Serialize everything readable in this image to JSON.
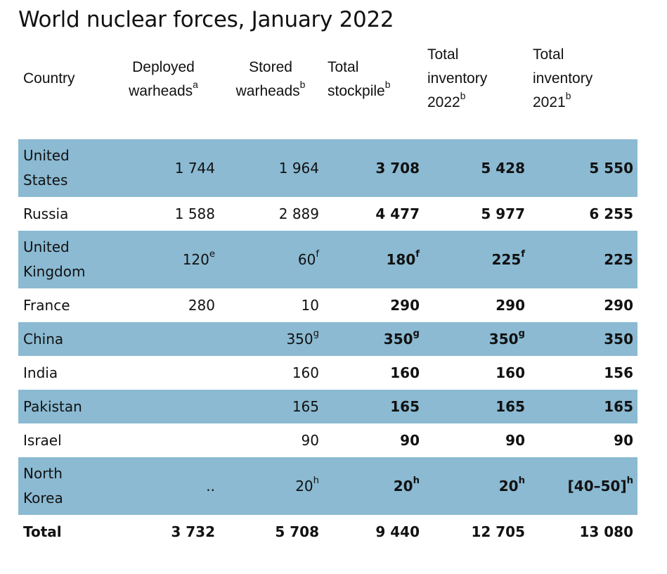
{
  "title": "World nuclear forces, January 2022",
  "headers": {
    "country": "Country",
    "deployed": {
      "line1": "Deployed",
      "line2": "warheads",
      "sup": "a"
    },
    "stored": {
      "line1": "Stored",
      "line2": "warheads",
      "sup": "b"
    },
    "stockpile": {
      "line1": "Total",
      "line2": "stockpile",
      "sup": "b"
    },
    "inv2022": {
      "line1": "Total",
      "line2": "inventory",
      "line3": "2022",
      "sup": "b"
    },
    "inv2021": {
      "line1": "Total",
      "line2": "inventory",
      "line3": "2021",
      "sup": "b"
    }
  },
  "rows": [
    {
      "country_l1": "United",
      "country_l2": "States",
      "deployed": "1 744",
      "deployed_sup": "",
      "stored": "1 964",
      "stored_sup": "",
      "stockpile": "3 708",
      "stockpile_sup": "",
      "inv2022": "5 428",
      "inv2022_sup": "",
      "inv2021": "5 550",
      "inv2021_sup": ""
    },
    {
      "country_l1": "Russia",
      "country_l2": "",
      "deployed": "1 588",
      "deployed_sup": "",
      "stored": "2 889",
      "stored_sup": "",
      "stockpile": "4 477",
      "stockpile_sup": "",
      "inv2022": "5 977",
      "inv2022_sup": "",
      "inv2021": "6 255",
      "inv2021_sup": ""
    },
    {
      "country_l1": "United",
      "country_l2": "Kingdom",
      "deployed": "120",
      "deployed_sup": "e",
      "stored": "60",
      "stored_sup": "f",
      "stockpile": "180",
      "stockpile_sup": "f",
      "inv2022": "225",
      "inv2022_sup": "f",
      "inv2021": "225",
      "inv2021_sup": ""
    },
    {
      "country_l1": "France",
      "country_l2": "",
      "deployed": "280",
      "deployed_sup": "",
      "stored": "10",
      "stored_sup": "",
      "stockpile": "290",
      "stockpile_sup": "",
      "inv2022": "290",
      "inv2022_sup": "",
      "inv2021": "290",
      "inv2021_sup": ""
    },
    {
      "country_l1": "China",
      "country_l2": "",
      "deployed": "",
      "deployed_sup": "",
      "stored": "350",
      "stored_sup": "g",
      "stockpile": "350",
      "stockpile_sup": "g",
      "inv2022": "350",
      "inv2022_sup": "g",
      "inv2021": "350",
      "inv2021_sup": ""
    },
    {
      "country_l1": "India",
      "country_l2": "",
      "deployed": "",
      "deployed_sup": "",
      "stored": "160",
      "stored_sup": "",
      "stockpile": "160",
      "stockpile_sup": "",
      "inv2022": "160",
      "inv2022_sup": "",
      "inv2021": "156",
      "inv2021_sup": ""
    },
    {
      "country_l1": "Pakistan",
      "country_l2": "",
      "deployed": "",
      "deployed_sup": "",
      "stored": "165",
      "stored_sup": "",
      "stockpile": "165",
      "stockpile_sup": "",
      "inv2022": "165",
      "inv2022_sup": "",
      "inv2021": "165",
      "inv2021_sup": ""
    },
    {
      "country_l1": "Israel",
      "country_l2": "",
      "deployed": "",
      "deployed_sup": "",
      "stored": "90",
      "stored_sup": "",
      "stockpile": "90",
      "stockpile_sup": "",
      "inv2022": "90",
      "inv2022_sup": "",
      "inv2021": "90",
      "inv2021_sup": ""
    },
    {
      "country_l1": "North",
      "country_l2": "Korea",
      "deployed": "..",
      "deployed_sup": "",
      "stored": "20",
      "stored_sup": "h",
      "stockpile": "20",
      "stockpile_sup": "h",
      "inv2022": "20",
      "inv2022_sup": "h",
      "inv2021": "[40–50]",
      "inv2021_sup": "h"
    }
  ],
  "total": {
    "label": "Total",
    "deployed": "3 732",
    "stored": "5 708",
    "stockpile": "9 440",
    "inv2022": "12 705",
    "inv2021": "13 080"
  },
  "colors": {
    "row_shade": "#8bbad2",
    "text": "#111111",
    "background": "#ffffff"
  }
}
